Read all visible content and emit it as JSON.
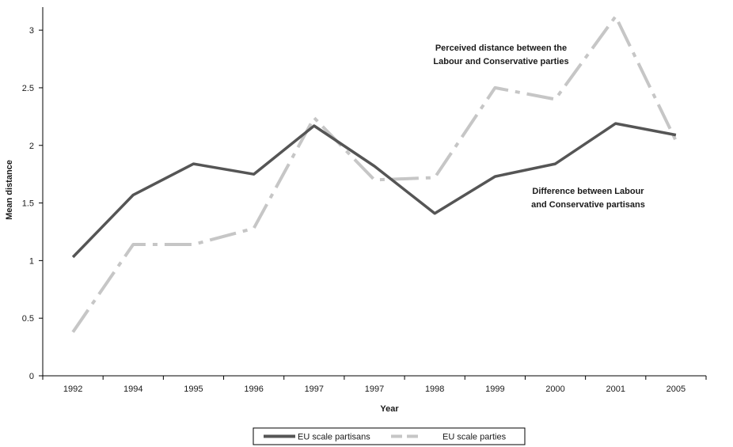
{
  "chart_data": {
    "type": "line",
    "categories": [
      "1992",
      "1994",
      "1995",
      "1996",
      "1997",
      "1997",
      "1998",
      "1999",
      "2000",
      "2001",
      "2005"
    ],
    "xlabel": "Year",
    "ylabel": "Mean distance",
    "ylim": [
      0,
      3.2
    ],
    "yticks": [
      "0",
      "0.5",
      "1",
      "1.5",
      "2",
      "2.5",
      "3"
    ],
    "series": [
      {
        "name": "EU scale partisans",
        "color": "#555555",
        "style": "solid",
        "values": [
          1.03,
          1.57,
          1.84,
          1.75,
          2.17,
          1.82,
          1.41,
          1.73,
          1.84,
          2.19,
          2.09
        ]
      },
      {
        "name": "EU scale parties",
        "color": "#c6c6c6",
        "style": "dash-dot",
        "values": [
          0.38,
          1.14,
          1.14,
          1.28,
          2.24,
          1.7,
          1.72,
          2.5,
          2.4,
          3.12,
          2.04
        ]
      }
    ],
    "annotations": [
      {
        "lines": [
          "Perceived distance between the",
          "Labour and Conservative parties"
        ]
      },
      {
        "lines": [
          "Difference between Labour",
          "and Conservative partisans"
        ]
      }
    ],
    "legend": {
      "position": "bottom"
    },
    "grid": false
  }
}
